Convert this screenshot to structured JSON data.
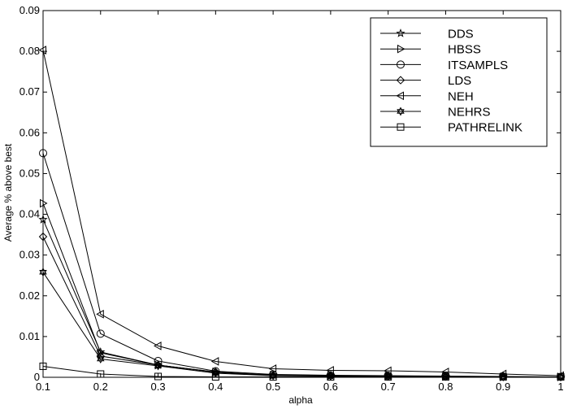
{
  "chart_data": {
    "type": "line",
    "title": "",
    "xlabel": "alpha",
    "ylabel": "Average % above best",
    "x": [
      0.1,
      0.2,
      0.3,
      0.4,
      0.5,
      0.6,
      0.7,
      0.8,
      0.9,
      1
    ],
    "xlim": [
      0.1,
      1
    ],
    "ylim": [
      0,
      0.09
    ],
    "xticks": [
      "0.1",
      "0.2",
      "0.3",
      "0.4",
      "0.5",
      "0.6",
      "0.7",
      "0.8",
      "0.9",
      "1"
    ],
    "yticks": [
      "0",
      "0.01",
      "0.02",
      "0.03",
      "0.04",
      "0.05",
      "0.06",
      "0.07",
      "0.08",
      "0.09"
    ],
    "grid": false,
    "legend_position": "top-right",
    "series": [
      {
        "name": "DDS",
        "marker": "star-icon",
        "values": [
          0.0387,
          0.0062,
          0.003,
          0.0012,
          0.0005,
          0.0004,
          0.0003,
          0.0002,
          0.0001,
          0.0001
        ]
      },
      {
        "name": "HBSS",
        "marker": "triangle-right-icon",
        "values": [
          0.0427,
          0.006,
          0.003,
          0.0013,
          0.0005,
          0.0004,
          0.0003,
          0.0002,
          0.0001,
          0.0001
        ]
      },
      {
        "name": "ITSAMPLS",
        "marker": "circle-icon",
        "values": [
          0.055,
          0.0107,
          0.004,
          0.0015,
          0.0007,
          0.0005,
          0.0004,
          0.0003,
          0.0002,
          0.0001
        ]
      },
      {
        "name": "LDS",
        "marker": "diamond-icon",
        "values": [
          0.0345,
          0.0052,
          0.003,
          0.0013,
          0.0005,
          0.0004,
          0.0003,
          0.0002,
          0.0001,
          0.0001
        ]
      },
      {
        "name": "NEH",
        "marker": "triangle-left-icon",
        "values": [
          0.0803,
          0.0155,
          0.0077,
          0.0039,
          0.0021,
          0.0017,
          0.0016,
          0.0013,
          0.0008,
          0.0004
        ]
      },
      {
        "name": "NEHRS",
        "marker": "hexagram-icon",
        "values": [
          0.0258,
          0.0045,
          0.0028,
          0.001,
          0.0004,
          0.0003,
          0.0002,
          0.0002,
          0.0001,
          0.0001
        ]
      },
      {
        "name": "PATHRELINK",
        "marker": "square-icon",
        "values": [
          0.0027,
          0.0008,
          0.0002,
          0.0001,
          0.0001,
          0.0001,
          0.0001,
          0.0001,
          0.0001,
          0.0001
        ]
      }
    ]
  }
}
